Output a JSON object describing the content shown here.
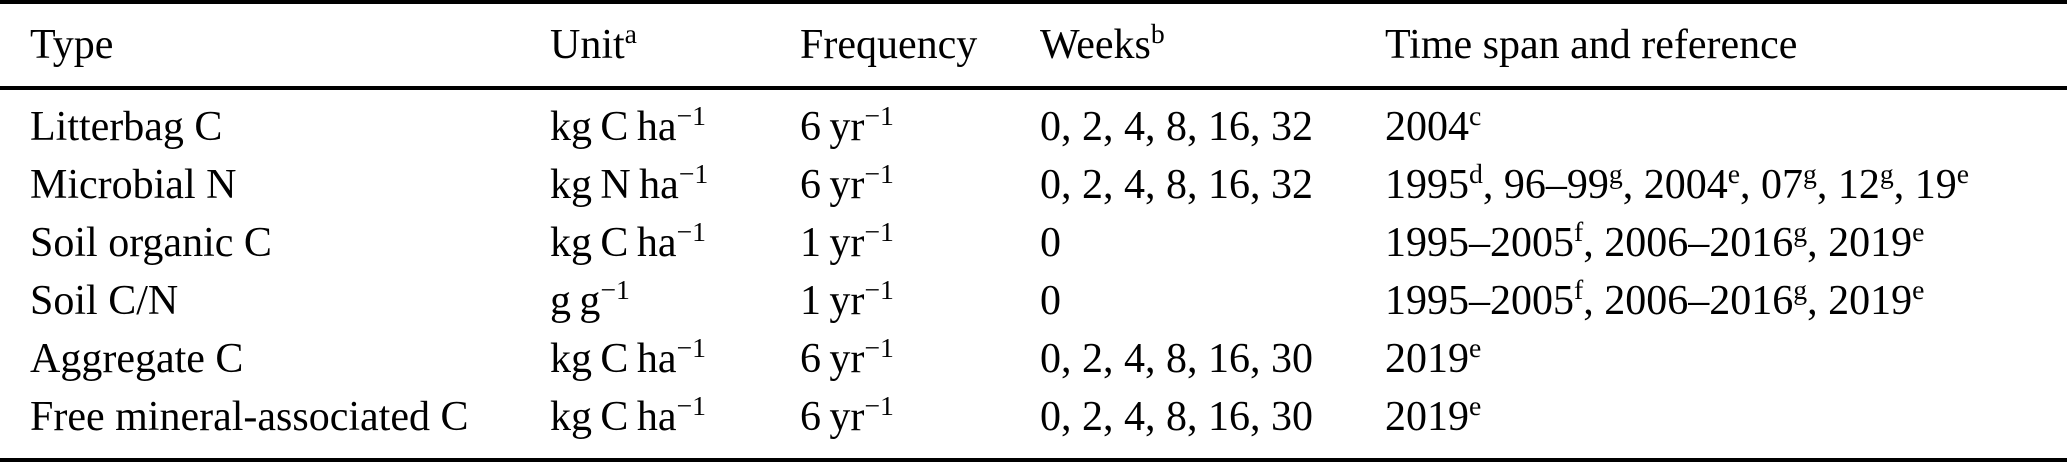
{
  "table": {
    "background_color": "#ffffff",
    "text_color": "#000000",
    "rule_color": "#000000",
    "columns": [
      {
        "key": "type",
        "segments": [
          {
            "t": "Type"
          }
        ]
      },
      {
        "key": "unit",
        "segments": [
          {
            "t": "Unit"
          },
          {
            "t": "a",
            "sup": true
          }
        ]
      },
      {
        "key": "frequency",
        "segments": [
          {
            "t": "Frequency"
          }
        ]
      },
      {
        "key": "weeks",
        "segments": [
          {
            "t": "Weeks"
          },
          {
            "t": "b",
            "sup": true
          }
        ]
      },
      {
        "key": "timespan",
        "segments": [
          {
            "t": "Time span and reference"
          }
        ]
      }
    ],
    "rows": [
      {
        "type": [
          {
            "t": "Litterbag C"
          }
        ],
        "unit": [
          {
            "t": "kg C ha"
          },
          {
            "t": "−1",
            "sup": true
          }
        ],
        "frequency": [
          {
            "t": "6 yr"
          },
          {
            "t": "−1",
            "sup": true
          }
        ],
        "weeks": [
          {
            "t": "0, 2, 4, 8, 16, 32"
          }
        ],
        "timespan": [
          {
            "t": "2004"
          },
          {
            "t": "c",
            "sup": true
          }
        ]
      },
      {
        "type": [
          {
            "t": "Microbial N"
          }
        ],
        "unit": [
          {
            "t": "kg N ha"
          },
          {
            "t": "−1",
            "sup": true
          }
        ],
        "frequency": [
          {
            "t": "6 yr"
          },
          {
            "t": "−1",
            "sup": true
          }
        ],
        "weeks": [
          {
            "t": "0, 2, 4, 8, 16, 32"
          }
        ],
        "timespan": [
          {
            "t": "1995"
          },
          {
            "t": "d",
            "sup": true
          },
          {
            "t": ", 96–99"
          },
          {
            "t": "g",
            "sup": true
          },
          {
            "t": ", 2004"
          },
          {
            "t": "e",
            "sup": true
          },
          {
            "t": ", 07"
          },
          {
            "t": "g",
            "sup": true
          },
          {
            "t": ", 12"
          },
          {
            "t": "g",
            "sup": true
          },
          {
            "t": ", 19"
          },
          {
            "t": "e",
            "sup": true
          }
        ]
      },
      {
        "type": [
          {
            "t": "Soil organic C"
          }
        ],
        "unit": [
          {
            "t": "kg C ha"
          },
          {
            "t": "−1",
            "sup": true
          }
        ],
        "frequency": [
          {
            "t": "1 yr"
          },
          {
            "t": "−1",
            "sup": true
          }
        ],
        "weeks": [
          {
            "t": "0"
          }
        ],
        "timespan": [
          {
            "t": "1995–2005"
          },
          {
            "t": "f",
            "sup": true
          },
          {
            "t": ", 2006–2016"
          },
          {
            "t": "g",
            "sup": true
          },
          {
            "t": ", 2019"
          },
          {
            "t": "e",
            "sup": true
          }
        ]
      },
      {
        "type": [
          {
            "t": "Soil C/N"
          }
        ],
        "unit": [
          {
            "t": "g g"
          },
          {
            "t": "−1",
            "sup": true
          }
        ],
        "frequency": [
          {
            "t": "1 yr"
          },
          {
            "t": "−1",
            "sup": true
          }
        ],
        "weeks": [
          {
            "t": "0"
          }
        ],
        "timespan": [
          {
            "t": "1995–2005"
          },
          {
            "t": "f",
            "sup": true
          },
          {
            "t": ", 2006–2016"
          },
          {
            "t": "g",
            "sup": true
          },
          {
            "t": ", 2019"
          },
          {
            "t": "e",
            "sup": true
          }
        ]
      },
      {
        "type": [
          {
            "t": "Aggregate C"
          }
        ],
        "unit": [
          {
            "t": "kg C ha"
          },
          {
            "t": "−1",
            "sup": true
          }
        ],
        "frequency": [
          {
            "t": "6 yr"
          },
          {
            "t": "−1",
            "sup": true
          }
        ],
        "weeks": [
          {
            "t": "0, 2, 4, 8, 16, 30"
          }
        ],
        "timespan": [
          {
            "t": "2019"
          },
          {
            "t": "e",
            "sup": true
          }
        ]
      },
      {
        "type": [
          {
            "t": "Free mineral-associated C"
          }
        ],
        "unit": [
          {
            "t": "kg C ha"
          },
          {
            "t": "−1",
            "sup": true
          }
        ],
        "frequency": [
          {
            "t": "6 yr"
          },
          {
            "t": "−1",
            "sup": true
          }
        ],
        "weeks": [
          {
            "t": "0, 2, 4, 8, 16, 30"
          }
        ],
        "timespan": [
          {
            "t": "2019"
          },
          {
            "t": "e",
            "sup": true
          }
        ]
      }
    ]
  }
}
